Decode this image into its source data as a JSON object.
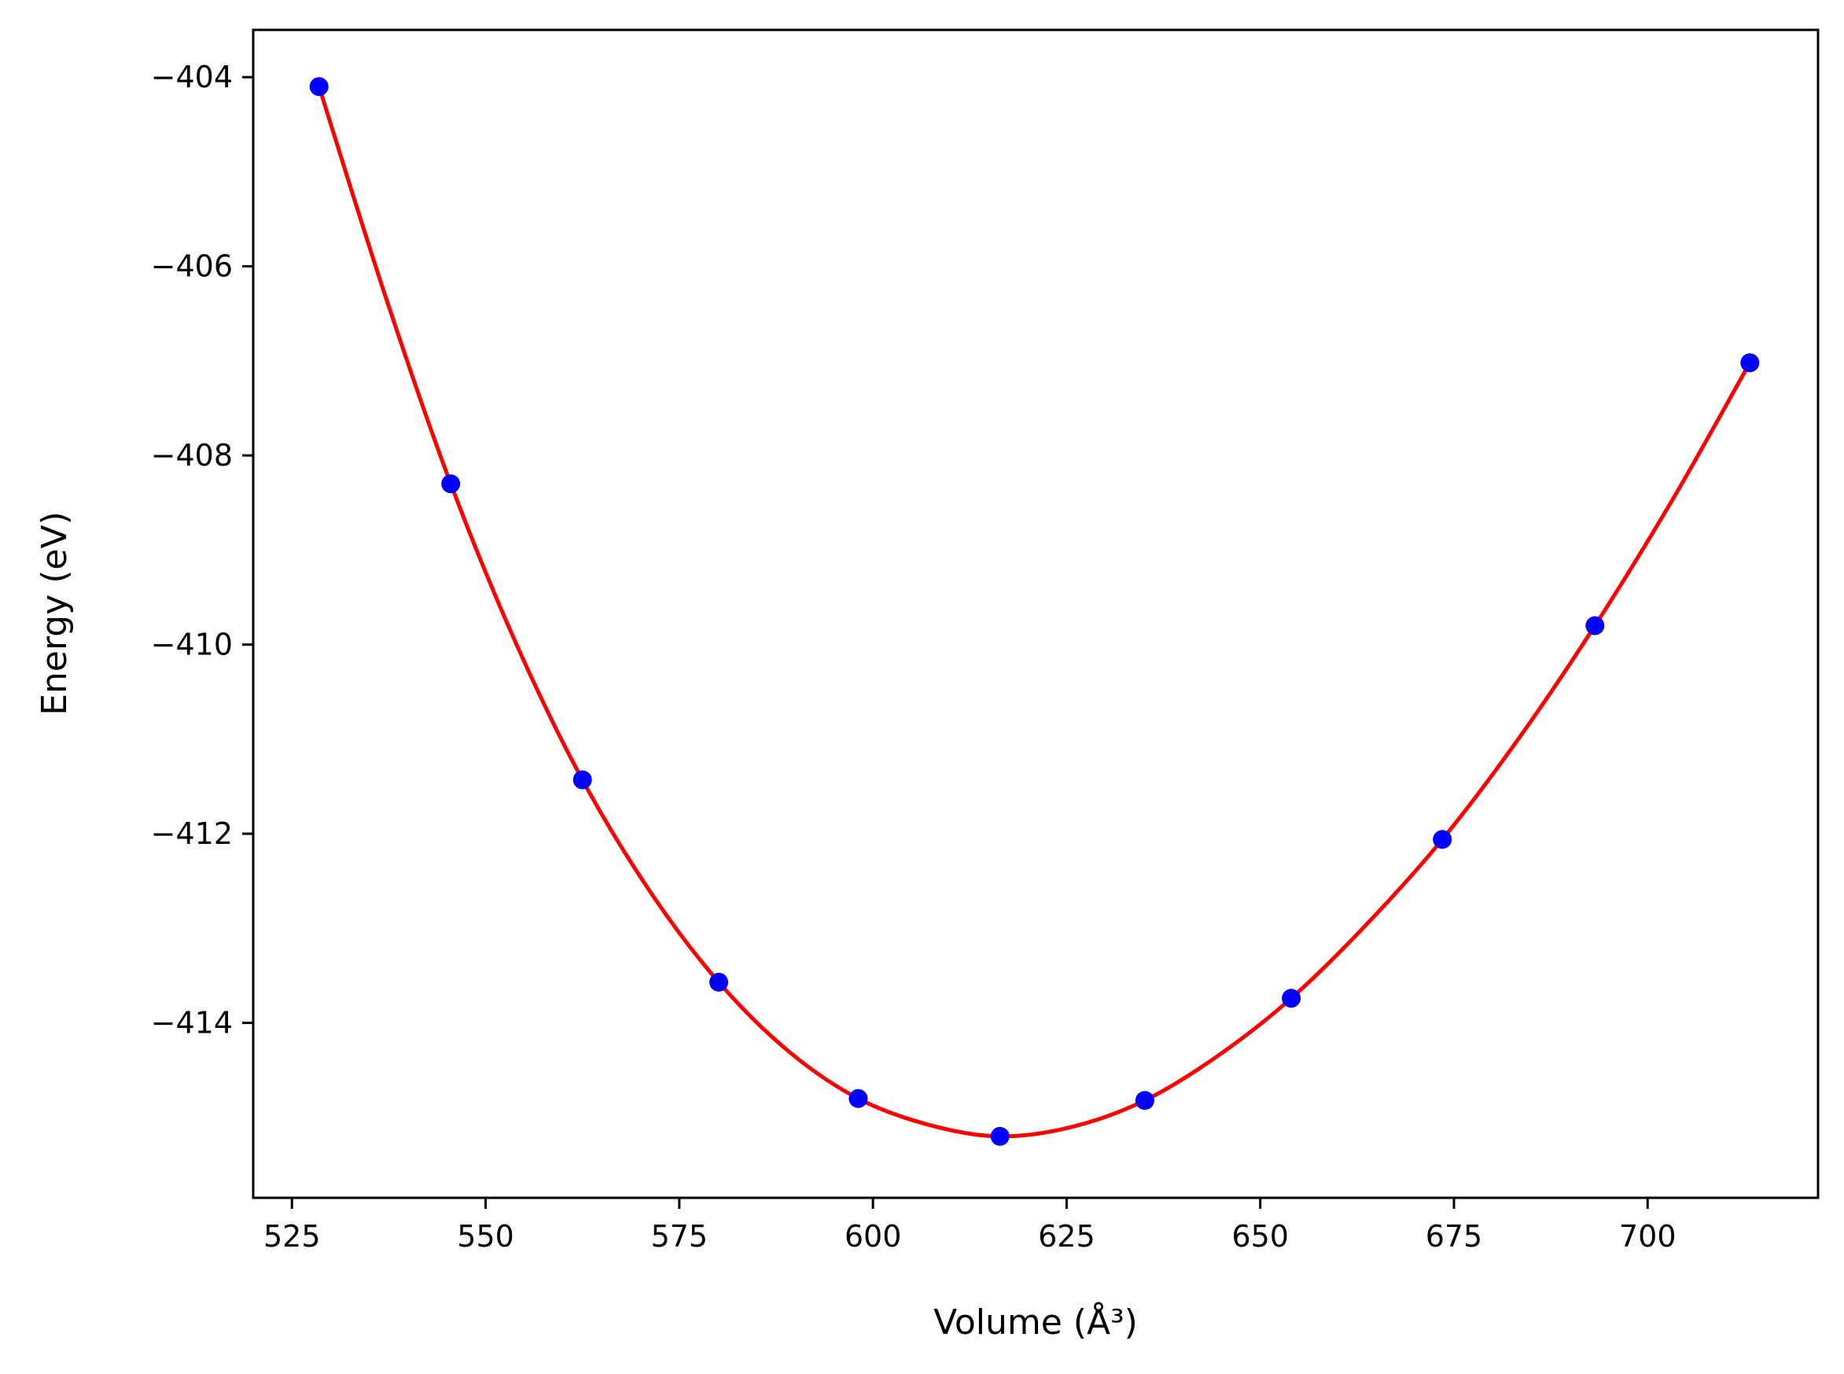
{
  "chart_data": {
    "type": "scatter",
    "title": "",
    "xlabel": "Volume (Å³)",
    "ylabel": "Energy (eV)",
    "xlim": [
      520,
      722
    ],
    "ylim": [
      -415.85,
      -403.5
    ],
    "grid": false,
    "legend": "none",
    "xticks": [
      525,
      550,
      575,
      600,
      625,
      650,
      675,
      700
    ],
    "yticks": [
      -404,
      -406,
      -408,
      -410,
      -412,
      -414
    ],
    "xtick_labels": [
      "525",
      "550",
      "575",
      "600",
      "625",
      "650",
      "675",
      "700"
    ],
    "ytick_labels": [
      "−404",
      "−406",
      "−408",
      "−410",
      "−412",
      "−414"
    ],
    "series": [
      {
        "kind": "points",
        "color": "#0000ff",
        "x": [
          528.5,
          545.5,
          562.5,
          580.1,
          598.1,
          616.4,
          635.1,
          654.0,
          673.5,
          693.2,
          713.2
        ],
        "y": [
          -404.1,
          -408.3,
          -411.43,
          -413.57,
          -414.8,
          -415.2,
          -414.82,
          -413.74,
          -412.06,
          -409.8,
          -407.02
        ]
      },
      {
        "kind": "fit",
        "color": "#ff0000",
        "x": [
          528.5,
          537,
          545.5,
          554,
          562.5,
          571.3,
          580.1,
          589.1,
          598.1,
          607.3,
          616.4,
          625.7,
          635.1,
          644.5,
          654.0,
          663.7,
          673.5,
          683.3,
          693.2,
          703.2,
          713.2
        ],
        "y": [
          -404.1,
          -406.3,
          -408.3,
          -410.0,
          -411.43,
          -412.62,
          -413.57,
          -414.3,
          -414.8,
          -415.08,
          -415.2,
          -415.1,
          -414.82,
          -414.35,
          -413.74,
          -412.96,
          -412.06,
          -411.0,
          -409.8,
          -408.47,
          -407.02
        ]
      }
    ]
  }
}
